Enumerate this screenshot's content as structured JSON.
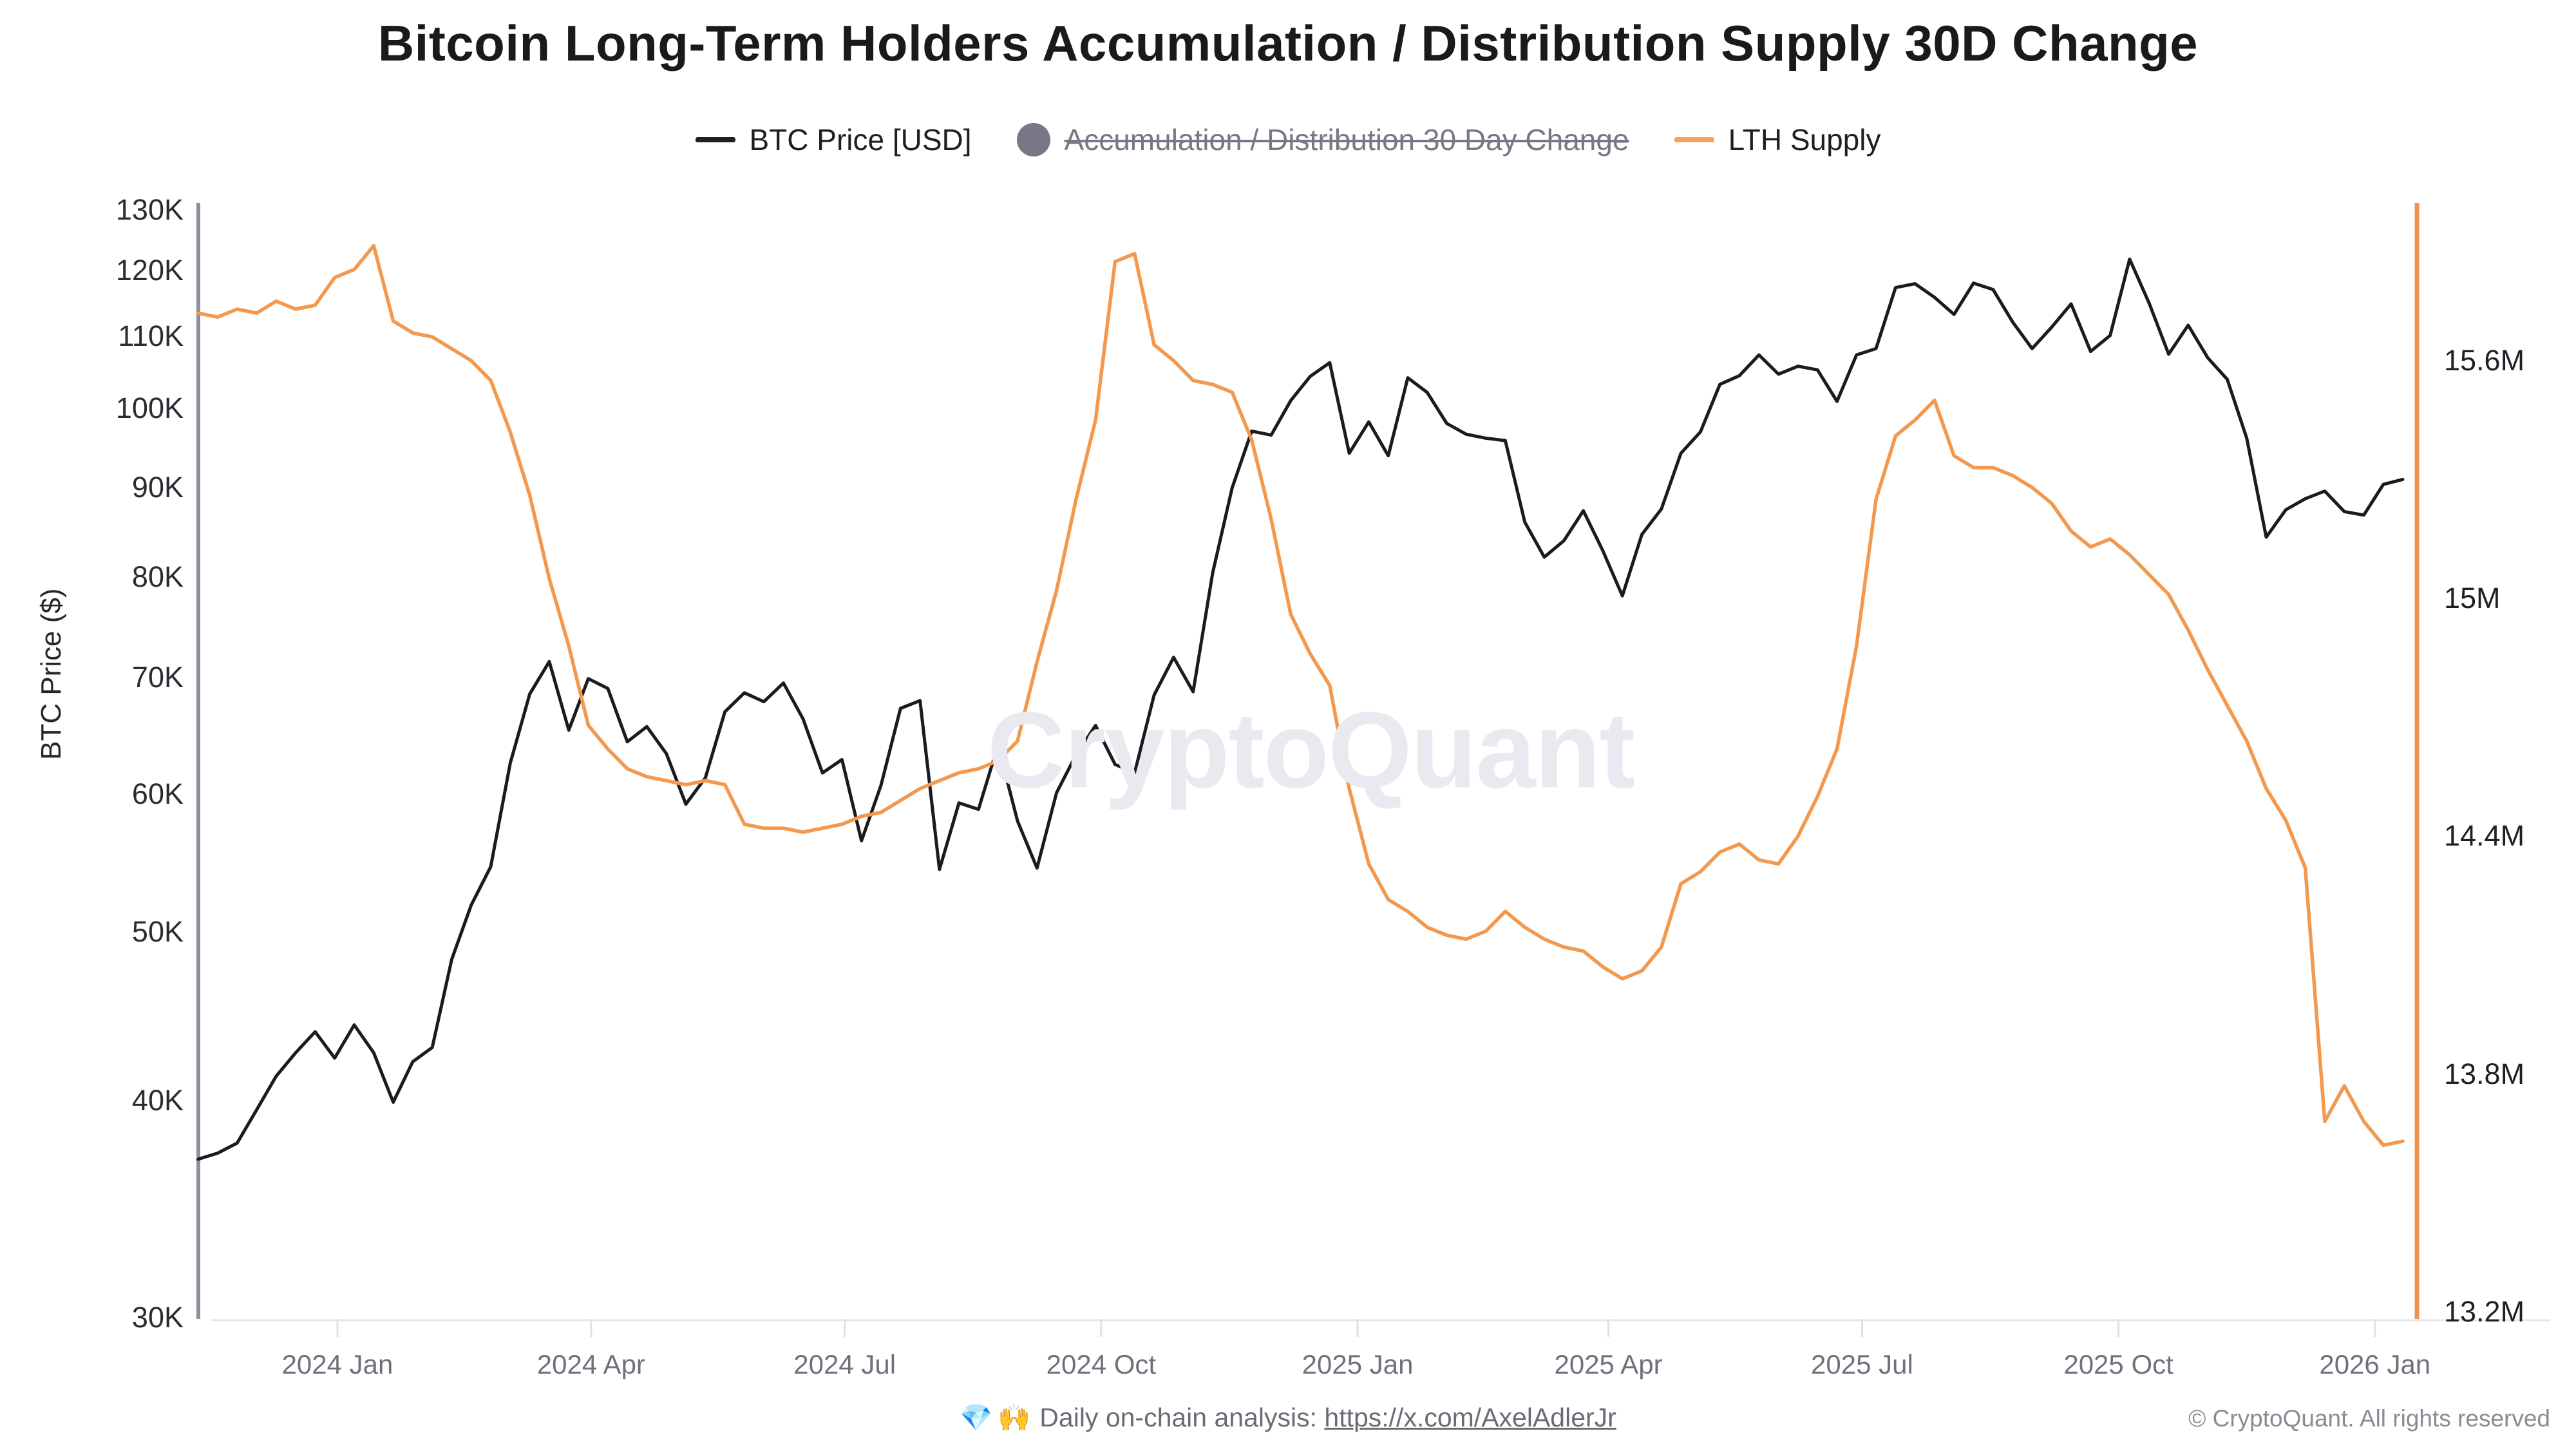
{
  "title": "Bitcoin Long-Term Holders Accumulation / Distribution Supply 30D Change",
  "legend": {
    "items": [
      {
        "label": "BTC Price [USD]",
        "marker": "dash",
        "color": "#1f1f24",
        "disabled": false
      },
      {
        "label": "Accumulation / Distribution 30 Day Change",
        "marker": "circle",
        "color": "#7b7685",
        "disabled": true
      },
      {
        "label": "LTH Supply",
        "marker": "dash",
        "color": "#f4a263",
        "disabled": false
      }
    ]
  },
  "watermark": "CryptoQuant",
  "footer": {
    "gem_icon": "💎",
    "raised_hands_icon": "🙌",
    "note_text": "Daily on-chain analysis: ",
    "link_text": "https://x.com/AxelAdlerJr",
    "copyright": "© CryptoQuant. All rights reserved"
  },
  "chart_data": {
    "type": "line",
    "title": "Bitcoin Long-Term Holders Accumulation / Distribution Supply 30D Change",
    "grid": "none",
    "legend_position": "top",
    "x_axis": {
      "tick_labels": [
        "2024 Jan",
        "2024 Apr",
        "2024 Jul",
        "2024 Oct",
        "2025 Jan",
        "2025 Apr",
        "2025 Jul",
        "2025 Oct",
        "2026 Jan"
      ],
      "tick_dates": [
        "2024-01-01",
        "2024-04-01",
        "2024-07-01",
        "2024-10-01",
        "2025-01-01",
        "2025-04-01",
        "2025-07-01",
        "2025-10-01",
        "2026-01-01"
      ],
      "range": [
        "2023-11-12",
        "2026-01-14"
      ]
    },
    "left_axis": {
      "title": "BTC Price ($)",
      "scale": "log",
      "unit": "USD",
      "tick_labels": [
        "130K",
        "120K",
        "110K",
        "100K",
        "90K",
        "80K",
        "70K",
        "60K",
        "50K",
        "40K",
        "30K"
      ],
      "tick_values": [
        130000,
        120000,
        110000,
        100000,
        90000,
        80000,
        70000,
        60000,
        50000,
        40000,
        30000
      ],
      "range": [
        30000,
        130000
      ]
    },
    "right_axis": {
      "title": "LTH Supply",
      "scale": "linear",
      "unit": "million BTC",
      "tick_labels": [
        "15.6M",
        "15M",
        "14.4M",
        "13.8M",
        "13.2M"
      ],
      "tick_values": [
        15.6,
        15.0,
        14.4,
        13.8,
        13.2
      ],
      "range": [
        13.17,
        16.0
      ]
    },
    "series": [
      {
        "name": "BTC Price [USD]",
        "axis": "left",
        "color": "#1b1b1f",
        "unit": "USD",
        "start_date": "2023-11-12",
        "step_days": 7,
        "values": [
          37000,
          37300,
          37800,
          39500,
          41300,
          42600,
          43800,
          42300,
          44200,
          42600,
          39900,
          42100,
          42900,
          48200,
          51800,
          54500,
          62500,
          68500,
          71500,
          65300,
          69900,
          69000,
          64300,
          65600,
          63300,
          59200,
          61300,
          66900,
          68600,
          67800,
          69500,
          66300,
          61700,
          62800,
          56400,
          60700,
          67200,
          67900,
          54300,
          59300,
          58800,
          64000,
          57900,
          54400,
          60100,
          63200,
          65700,
          62400,
          61700,
          68400,
          71900,
          68700,
          80400,
          90000,
          97000,
          96500,
          101000,
          104300,
          106200,
          94200,
          98200,
          93900,
          104100,
          102100,
          98000,
          96600,
          96100,
          95800,
          86000,
          82100,
          83900,
          87300,
          82800,
          78000,
          84600,
          87500,
          94200,
          96900,
          103200,
          104400,
          107300,
          104600,
          105700,
          105200,
          100900,
          107300,
          108200,
          117300,
          117900,
          115800,
          113200,
          118000,
          117000,
          112100,
          108200,
          111300,
          114800,
          107800,
          110100,
          121800,
          114900,
          107400,
          111600,
          106900,
          103900,
          96100,
          84300,
          87400,
          88700,
          89600,
          87200,
          86800,
          90400,
          91000
        ]
      },
      {
        "name": "Accumulation / Distribution 30 Day Change",
        "axis": "hidden",
        "color": "#7b7685",
        "hidden": true,
        "values": []
      },
      {
        "name": "LTH Supply",
        "axis": "right",
        "color": "#f2994f",
        "unit": "million BTC",
        "start_date": "2023-11-12",
        "step_days": 7,
        "values": [
          15.72,
          15.71,
          15.73,
          15.72,
          15.75,
          15.73,
          15.74,
          15.81,
          15.83,
          15.89,
          15.7,
          15.67,
          15.66,
          15.63,
          15.6,
          15.55,
          15.42,
          15.26,
          15.05,
          14.88,
          14.68,
          14.62,
          14.57,
          14.55,
          14.54,
          14.53,
          14.54,
          14.53,
          14.43,
          14.42,
          14.42,
          14.41,
          14.42,
          14.43,
          14.45,
          14.46,
          14.49,
          14.52,
          14.54,
          14.56,
          14.57,
          14.59,
          14.64,
          14.84,
          15.02,
          15.25,
          15.45,
          15.85,
          15.87,
          15.64,
          15.6,
          15.55,
          15.54,
          15.52,
          15.4,
          15.2,
          14.96,
          14.86,
          14.78,
          14.52,
          14.33,
          14.24,
          14.21,
          14.17,
          14.15,
          14.14,
          14.16,
          14.21,
          14.17,
          14.14,
          14.12,
          14.11,
          14.07,
          14.04,
          14.06,
          14.12,
          14.28,
          14.31,
          14.36,
          14.38,
          14.34,
          14.33,
          14.4,
          14.5,
          14.62,
          14.88,
          15.25,
          15.41,
          15.45,
          15.5,
          15.36,
          15.33,
          15.33,
          15.31,
          15.28,
          15.24,
          15.17,
          15.13,
          15.15,
          15.11,
          15.06,
          15.01,
          14.92,
          14.82,
          14.73,
          14.64,
          14.52,
          14.44,
          14.32,
          13.68,
          13.77,
          13.68,
          13.62,
          13.63
        ]
      }
    ]
  }
}
